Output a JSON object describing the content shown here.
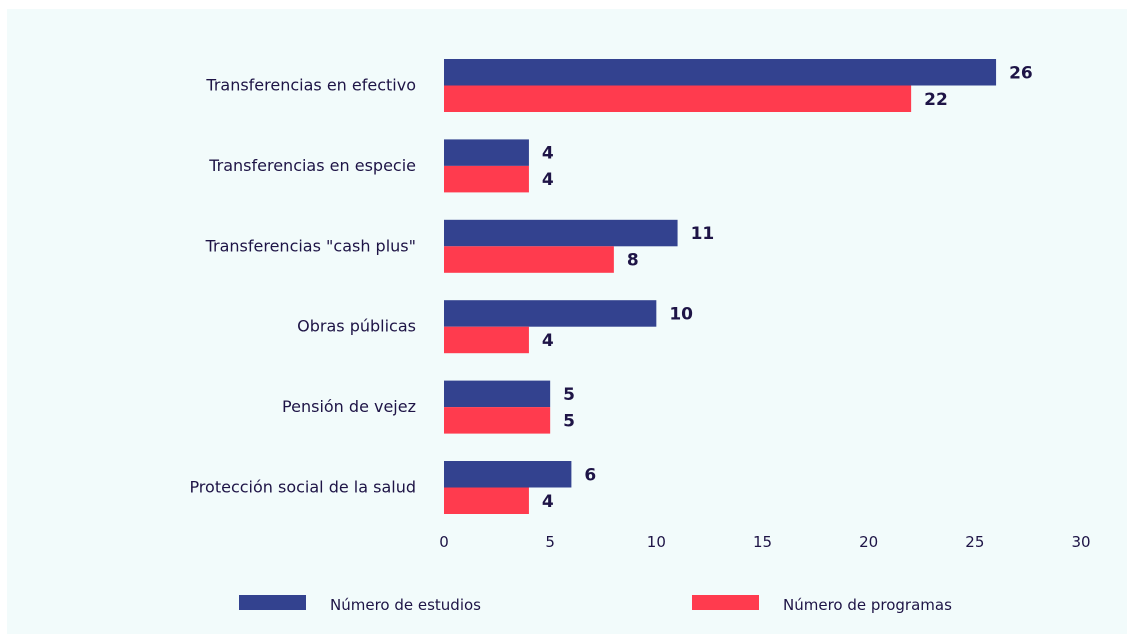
{
  "chart_data": {
    "type": "bar",
    "orientation": "horizontal",
    "title": "",
    "xlabel": "",
    "ylabel": "",
    "categories": [
      "Transferencias en efectivo",
      "Transferencias en especie",
      "Transferencias \"cash plus\"",
      "Obras públicas",
      "Pensión de vejez",
      "Protección social de la salud"
    ],
    "series": [
      {
        "name": "Número de estudios",
        "color": "#33428f",
        "values": [
          26,
          4,
          11,
          10,
          5,
          6
        ]
      },
      {
        "name": "Número de programas",
        "color": "#ff3b4e",
        "values": [
          22,
          4,
          8,
          4,
          5,
          4
        ]
      }
    ],
    "xlim": [
      0,
      30
    ],
    "xticks": [
      0,
      5,
      10,
      15,
      20,
      25,
      30
    ],
    "grid": false,
    "data_labels": true,
    "legend_position": "bottom"
  },
  "colors": {
    "background": "#f2fbfb",
    "text": "#1e1446"
  }
}
